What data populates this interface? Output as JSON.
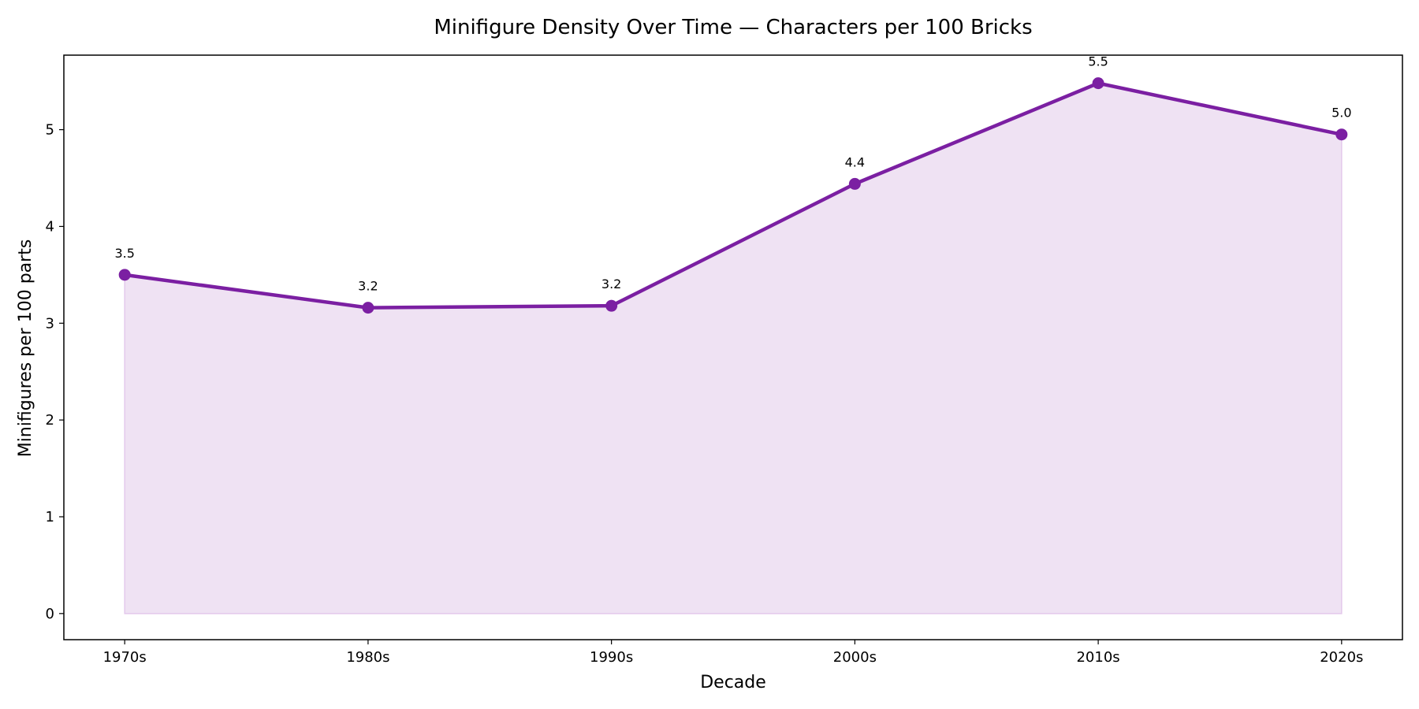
{
  "chart_data": {
    "type": "area",
    "title": "Minifigure Density Over Time — Characters per 100 Bricks",
    "xlabel": "Decade",
    "ylabel": "Minifigures per 100 parts",
    "categories": [
      "1970s",
      "1980s",
      "1990s",
      "2000s",
      "2010s",
      "2020s"
    ],
    "series": [
      {
        "values": [
          3.5,
          3.16,
          3.18,
          4.44,
          5.48,
          4.95
        ],
        "labels": [
          "3.5",
          "3.2",
          "3.2",
          "4.4",
          "5.5",
          "5.0"
        ]
      }
    ],
    "yticks": [
      "0",
      "1",
      "2",
      "3",
      "4",
      "5"
    ],
    "ylim": [
      -0.27,
      5.77
    ],
    "grid": false,
    "legend": "none",
    "colors": {
      "line": "#7B1FA2",
      "fill": "#EFE2F3",
      "fill_edge": "#E3C8EC",
      "axes": "#000000"
    }
  }
}
